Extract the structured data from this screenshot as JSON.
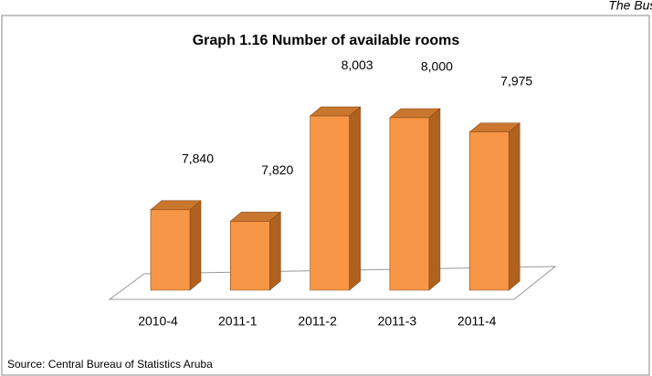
{
  "header": "The Business Cycle",
  "chart_data": {
    "type": "bar3d",
    "title": "Graph 1.16 Number of available rooms",
    "categories": [
      "2010-4",
      "2011-1",
      "2011-2",
      "2011-3",
      "2011-4"
    ],
    "values": [
      7840,
      7820,
      8003,
      8000,
      7975
    ],
    "value_labels": [
      "7,840",
      "7,820",
      "8,003",
      "8,000",
      "7,975"
    ],
    "color": "#f79646",
    "ylim": [
      7700,
      8050
    ],
    "source": "Source: Central Bureau of Statistics Aruba"
  }
}
